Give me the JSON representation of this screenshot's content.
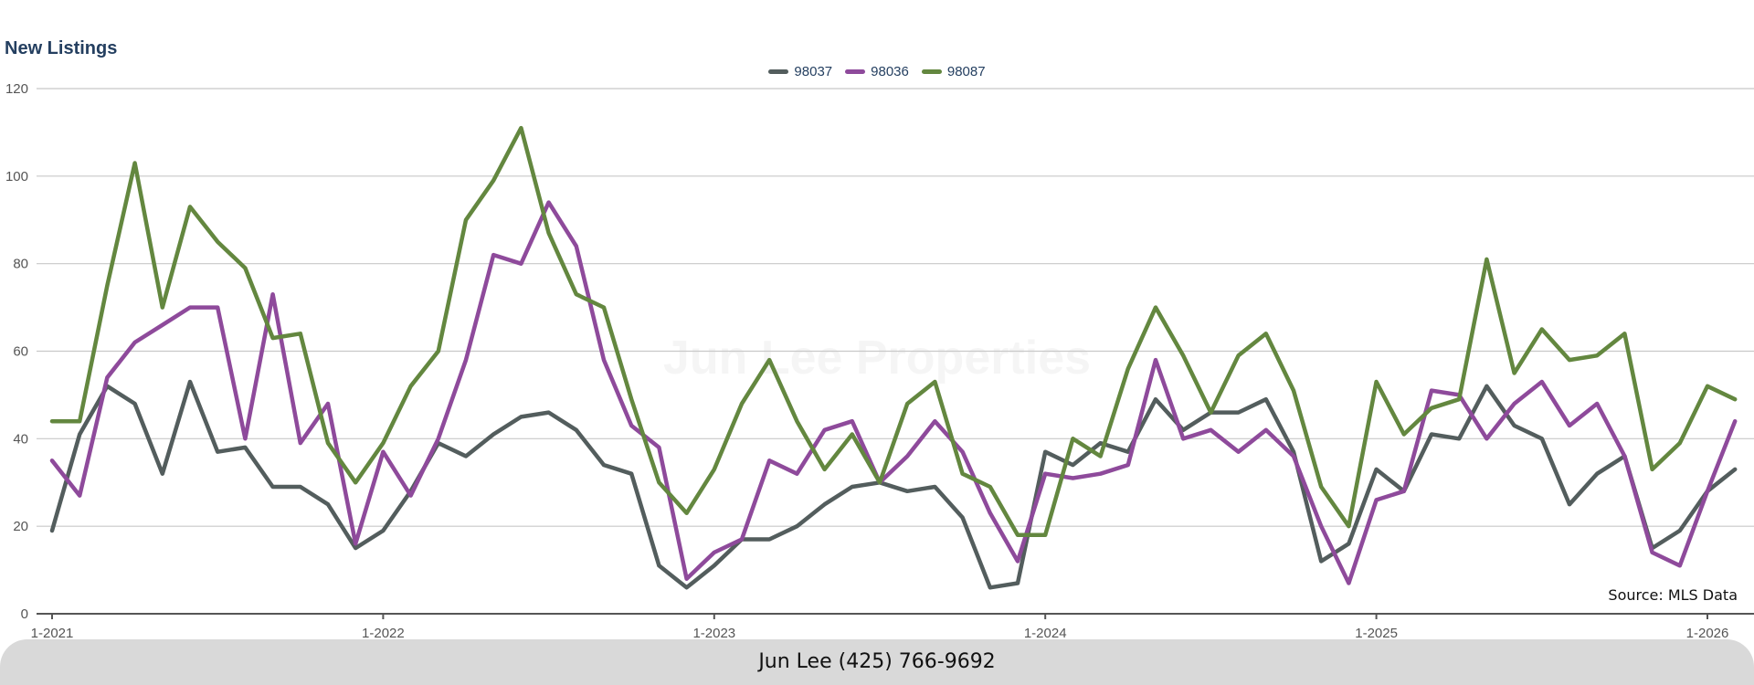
{
  "chart_data": {
    "type": "line",
    "title": "New Listings",
    "xlabel": "",
    "ylabel": "",
    "ylim": [
      0,
      120
    ],
    "yticks": [
      0,
      20,
      40,
      60,
      80,
      100,
      120
    ],
    "xticks": [
      "1-2021",
      "1-2022",
      "1-2023",
      "1-2024",
      "1-2025",
      "1-2026"
    ],
    "x_start": "1-2021",
    "grid": true,
    "legend_position": "top-center",
    "series": [
      {
        "name": "98037",
        "color": "#535d5d",
        "values": [
          19,
          41,
          52,
          48,
          32,
          53,
          37,
          38,
          29,
          29,
          25,
          15,
          19,
          28,
          39,
          36,
          41,
          45,
          46,
          42,
          34,
          32,
          11,
          6,
          11,
          17,
          17,
          20,
          25,
          29,
          30,
          28,
          29,
          22,
          6,
          7,
          37,
          34,
          39,
          37,
          49,
          42,
          46,
          46,
          49,
          37,
          12,
          16,
          33,
          28,
          41,
          40,
          52,
          43,
          40,
          25,
          32,
          36,
          15,
          19,
          28,
          33
        ]
      },
      {
        "name": "98036",
        "color": "#8e4a9b",
        "values": [
          35,
          27,
          54,
          62,
          66,
          70,
          70,
          40,
          73,
          39,
          48,
          16,
          37,
          27,
          40,
          58,
          82,
          80,
          94,
          84,
          58,
          43,
          38,
          8,
          14,
          17,
          35,
          32,
          42,
          44,
          30,
          36,
          44,
          37,
          23,
          12,
          32,
          31,
          32,
          34,
          58,
          40,
          42,
          37,
          42,
          36,
          20,
          7,
          26,
          28,
          51,
          50,
          40,
          48,
          53,
          43,
          48,
          36,
          14,
          11,
          28,
          44
        ]
      },
      {
        "name": "98087",
        "color": "#63873f",
        "values": [
          44,
          44,
          75,
          103,
          70,
          93,
          85,
          79,
          63,
          64,
          39,
          30,
          39,
          52,
          60,
          90,
          99,
          111,
          87,
          73,
          70,
          49,
          30,
          23,
          33,
          48,
          58,
          44,
          33,
          41,
          30,
          48,
          53,
          32,
          29,
          18,
          18,
          40,
          36,
          56,
          70,
          59,
          46,
          59,
          64,
          51,
          29,
          20,
          53,
          41,
          47,
          49,
          81,
          55,
          65,
          58,
          59,
          64,
          33,
          39,
          52,
          49
        ]
      }
    ]
  },
  "source_note": "Source: MLS Data",
  "watermark_text": "Jun Lee Properties",
  "footer": {
    "contact": "Jun Lee (425) 766-9692"
  }
}
